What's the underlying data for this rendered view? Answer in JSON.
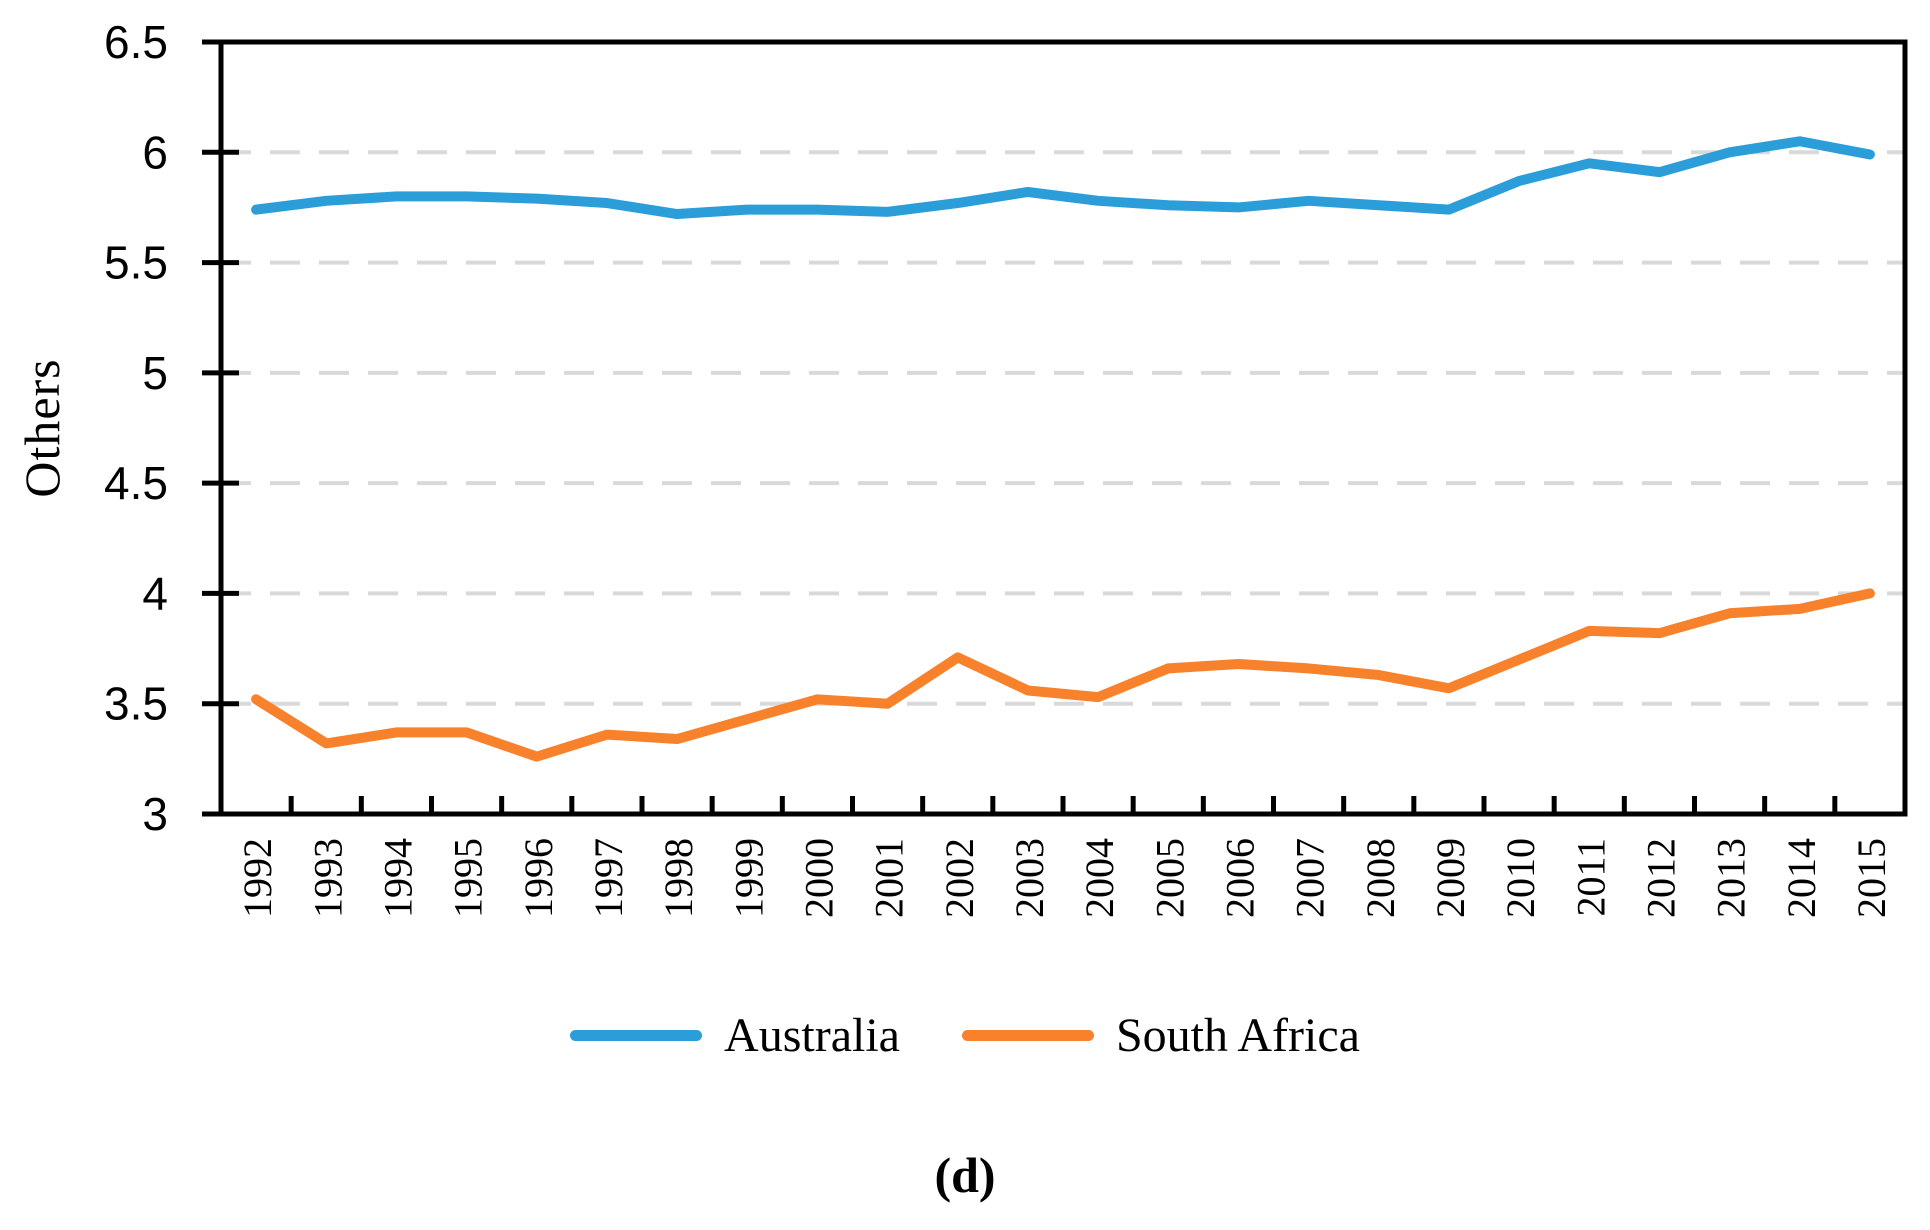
{
  "chart_data": {
    "type": "line",
    "title": "",
    "xlabel": "",
    "ylabel": "Others",
    "caption": "(d)",
    "ylim": [
      3,
      6.5
    ],
    "ytick_step": 0.5,
    "yticks": [
      "6.5",
      "6",
      "5.5",
      "5",
      "4.5",
      "4",
      "3.5",
      "3"
    ],
    "grid": "horizontal-dashed",
    "gridline_color": "#D9D9D9",
    "axis_color": "#000000",
    "legend_position": "bottom",
    "categories": [
      "1992",
      "1993",
      "1994",
      "1995",
      "1996",
      "1997",
      "1998",
      "1999",
      "2000",
      "2001",
      "2002",
      "2003",
      "2004",
      "2005",
      "2006",
      "2007",
      "2008",
      "2009",
      "2010",
      "2011",
      "2012",
      "2013",
      "2014",
      "2015"
    ],
    "series": [
      {
        "name": "Australia",
        "color": "#2B9DD8",
        "values": [
          5.74,
          5.78,
          5.8,
          5.8,
          5.79,
          5.77,
          5.72,
          5.74,
          5.74,
          5.73,
          5.77,
          5.82,
          5.78,
          5.76,
          5.75,
          5.78,
          5.76,
          5.74,
          5.87,
          5.95,
          5.91,
          6.0,
          6.05,
          5.99
        ]
      },
      {
        "name": "South Africa",
        "color": "#F8812C",
        "values": [
          3.52,
          3.32,
          3.37,
          3.37,
          3.26,
          3.36,
          3.34,
          3.43,
          3.52,
          3.5,
          3.71,
          3.56,
          3.53,
          3.66,
          3.68,
          3.66,
          3.63,
          3.57,
          3.7,
          3.83,
          3.82,
          3.91,
          3.93,
          4.0
        ]
      }
    ]
  }
}
